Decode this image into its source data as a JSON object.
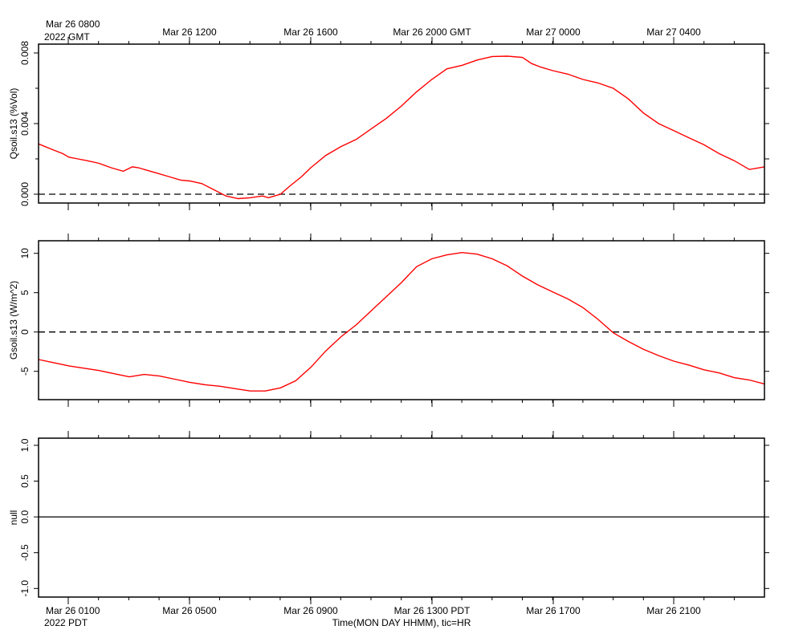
{
  "top_axis": {
    "first_label_line1": "Mar 26 0800",
    "first_label_line2": "2022 GMT",
    "labels": [
      "Mar 26 1200",
      "Mar 26 1600",
      "Mar 26 2000 GMT",
      "Mar 27 0000",
      "Mar 27 0400"
    ]
  },
  "bottom_axis": {
    "first_label_line1": "Mar 26 0100",
    "first_label_line2": "2022 PDT",
    "labels": [
      "Mar 26 0500",
      "Mar 26 0900",
      "Mar 26 1300 PDT",
      "Mar 26 1700",
      "Mar 26 2100"
    ],
    "title": "Time(MON DAY HHMM), tic=HR"
  },
  "colors": {
    "series": "#ff0000",
    "axis": "#000000"
  },
  "chart_data": [
    {
      "type": "line",
      "ylabel": "Qsoil.s13 (%Vol)",
      "xlim_hours_pdt": [
        0.0,
        24.0
      ],
      "ylim": [
        -0.0005,
        0.0085
      ],
      "yticks": [
        0.0,
        0.004,
        0.008
      ],
      "ytick_labels": [
        "0.000",
        "0.004",
        "0.008"
      ],
      "reference_line": 0.0,
      "series": [
        {
          "color": "#ff0000",
          "x": [
            0.0,
            0.5,
            0.8,
            1.0,
            1.3,
            1.6,
            2.0,
            2.4,
            2.8,
            3.1,
            3.3,
            3.6,
            3.9,
            4.3,
            4.7,
            5.0,
            5.4,
            5.8,
            6.2,
            6.6,
            7.0,
            7.4,
            7.6,
            7.8,
            8.0,
            8.3,
            8.7,
            9.0,
            9.5,
            10.0,
            10.5,
            11.0,
            11.5,
            12.0,
            12.5,
            13.0,
            13.5,
            14.0,
            14.5,
            15.0,
            15.5,
            16.0,
            16.3,
            16.6,
            17.0,
            17.5,
            18.0,
            18.5,
            19.0,
            19.5,
            20.0,
            20.5,
            21.0,
            21.5,
            22.0,
            22.5,
            23.0,
            23.5,
            24.0
          ],
          "values": [
            0.00285,
            0.0025,
            0.0023,
            0.0021,
            0.002,
            0.0019,
            0.00175,
            0.0015,
            0.0013,
            0.00155,
            0.0015,
            0.00135,
            0.0012,
            0.001,
            0.0008,
            0.00075,
            0.0006,
            0.00025,
            -0.0001,
            -0.00025,
            -0.0002,
            -0.0001,
            -0.0002,
            -0.0001,
            0.0,
            0.00045,
            0.001,
            0.0015,
            0.0022,
            0.0027,
            0.0031,
            0.0037,
            0.0043,
            0.005,
            0.0058,
            0.0065,
            0.0071,
            0.0073,
            0.0076,
            0.0078,
            0.00782,
            0.00775,
            0.0074,
            0.0072,
            0.007,
            0.0068,
            0.0065,
            0.0063,
            0.006,
            0.0054,
            0.0046,
            0.004,
            0.0036,
            0.0032,
            0.0028,
            0.0023,
            0.0019,
            0.0014,
            0.00155
          ]
        }
      ]
    },
    {
      "type": "line",
      "ylabel": "Gsoil.s13 (W/m^2)",
      "xlim_hours_pdt": [
        0.0,
        24.0
      ],
      "ylim": [
        -8.6,
        11.6
      ],
      "yticks": [
        -5,
        0,
        5,
        10
      ],
      "ytick_labels": [
        "-5",
        "0",
        "5",
        "10"
      ],
      "reference_line": 0.0,
      "series": [
        {
          "color": "#ff0000",
          "x": [
            0.0,
            0.5,
            1.0,
            1.5,
            2.0,
            2.5,
            3.0,
            3.5,
            4.0,
            4.5,
            5.0,
            5.5,
            6.0,
            6.5,
            7.0,
            7.5,
            8.0,
            8.5,
            9.0,
            9.5,
            10.0,
            10.5,
            11.0,
            11.5,
            12.0,
            12.5,
            13.0,
            13.5,
            14.0,
            14.5,
            15.0,
            15.5,
            16.0,
            16.5,
            17.0,
            17.5,
            18.0,
            18.5,
            19.0,
            19.5,
            20.0,
            20.5,
            21.0,
            21.5,
            22.0,
            22.5,
            23.0,
            23.5,
            24.0
          ],
          "values": [
            -3.5,
            -3.9,
            -4.3,
            -4.6,
            -4.9,
            -5.3,
            -5.7,
            -5.4,
            -5.6,
            -6.0,
            -6.4,
            -6.7,
            -6.9,
            -7.2,
            -7.5,
            -7.5,
            -7.1,
            -6.2,
            -4.5,
            -2.4,
            -0.6,
            0.9,
            2.7,
            4.5,
            6.3,
            8.3,
            9.3,
            9.8,
            10.1,
            9.9,
            9.3,
            8.4,
            7.1,
            6.0,
            5.1,
            4.2,
            3.1,
            1.6,
            -0.1,
            -1.2,
            -2.2,
            -3.0,
            -3.7,
            -4.2,
            -4.8,
            -5.2,
            -5.8,
            -6.1,
            -6.6
          ]
        }
      ]
    },
    {
      "type": "line",
      "ylabel": "null",
      "xlim_hours_pdt": [
        0.0,
        24.0
      ],
      "ylim": [
        -1.12,
        1.1
      ],
      "yticks": [
        -1.0,
        -0.5,
        0.0,
        0.5,
        1.0
      ],
      "ytick_labels": [
        "-1.0",
        "-0.5",
        "0.0",
        "0.5",
        "1.0"
      ],
      "reference_line": 0.0,
      "series": []
    }
  ]
}
